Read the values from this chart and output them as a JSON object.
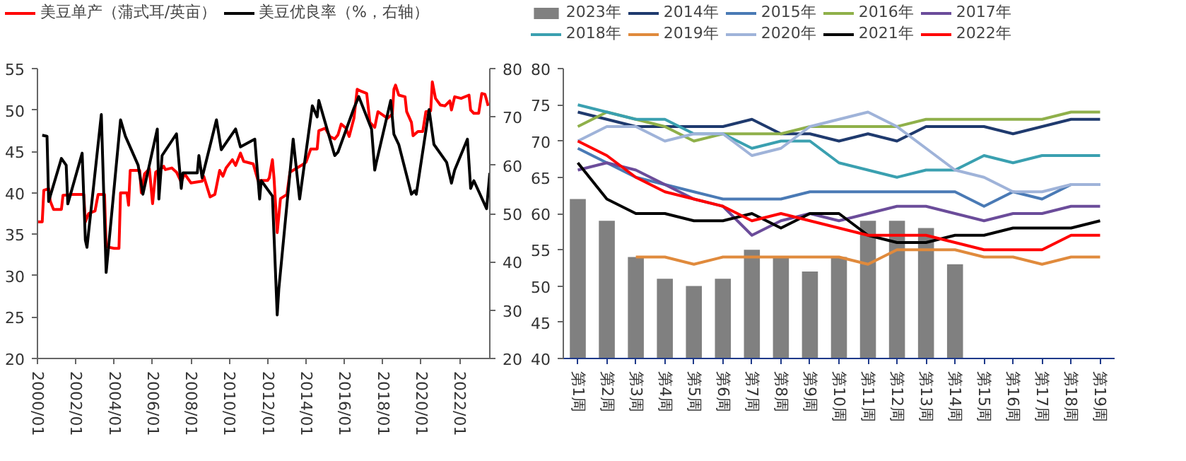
{
  "chart_data": [
    {
      "type": "line",
      "legend": "top",
      "grid": false,
      "ylim": [
        20,
        55
      ],
      "yticks": [
        20,
        25,
        30,
        35,
        40,
        45,
        50,
        55
      ],
      "y2lim": [
        20,
        80
      ],
      "y2ticks": [
        20,
        30,
        40,
        50,
        60,
        70,
        80
      ],
      "xlim": [
        "2000-01",
        "2023-08"
      ],
      "xticks": [
        {
          "value": "2000-01",
          "label": "2000/01"
        },
        {
          "value": "2002-01",
          "label": "2002/01"
        },
        {
          "value": "2004-01",
          "label": "2004/01"
        },
        {
          "value": "2006-01",
          "label": "2006/01"
        },
        {
          "value": "2008-01",
          "label": "2008/01"
        },
        {
          "value": "2010-01",
          "label": "2010/01"
        },
        {
          "value": "2012-01",
          "label": "2012/01"
        },
        {
          "value": "2014-01",
          "label": "2014/01"
        },
        {
          "value": "2016-01",
          "label": "2016/01"
        },
        {
          "value": "2018-01",
          "label": "2018/01"
        },
        {
          "value": "2020-01",
          "label": "2020/01"
        },
        {
          "value": "2022-01",
          "label": "2022/01"
        }
      ],
      "series": [
        {
          "name": "美豆单产（蒲式耳/英亩）",
          "color": "#ff0000",
          "x": [
            "2000-01",
            "2000-04",
            "2000-05",
            "2000-08",
            "2000-09",
            "2000-11",
            "2001-04",
            "2001-05",
            "2001-11",
            "2002-06",
            "2002-07",
            "2002-09",
            "2003-01",
            "2003-03",
            "2003-07",
            "2003-08",
            "2004-01",
            "2004-04",
            "2004-05",
            "2004-09",
            "2004-10",
            "2004-11",
            "2005-05",
            "2005-06",
            "2005-08",
            "2005-11",
            "2006-01",
            "2006-03",
            "2006-07",
            "2006-08",
            "2006-09",
            "2007-01",
            "2007-04",
            "2007-07",
            "2007-09",
            "2008-01",
            "2008-08",
            "2008-09",
            "2009-01",
            "2009-04",
            "2009-07",
            "2009-09",
            "2009-11",
            "2010-03",
            "2010-05",
            "2010-08",
            "2010-10",
            "2011-04",
            "2011-07",
            "2012-01",
            "2012-02",
            "2012-04",
            "2012-05",
            "2012-07",
            "2012-09",
            "2013-01",
            "2013-03",
            "2013-10",
            "2014-01",
            "2014-04",
            "2014-08",
            "2014-09",
            "2015-01",
            "2015-04",
            "2015-07",
            "2015-09",
            "2015-11",
            "2016-02",
            "2016-04",
            "2016-07",
            "2016-09",
            "2016-11",
            "2017-03",
            "2017-05",
            "2017-08",
            "2017-10",
            "2018-01",
            "2018-04",
            "2018-07",
            "2018-08",
            "2018-09",
            "2018-11",
            "2019-03",
            "2019-04",
            "2019-07",
            "2019-08",
            "2019-11",
            "2020-02",
            "2020-04",
            "2020-07",
            "2020-08",
            "2020-10",
            "2021-01",
            "2021-04",
            "2021-07",
            "2021-08",
            "2021-10",
            "2022-02",
            "2022-07",
            "2022-08",
            "2022-10",
            "2023-01",
            "2023-03",
            "2023-05",
            "2023-07"
          ],
          "values": [
            36.5,
            36.5,
            40.3,
            40.5,
            39,
            38,
            38,
            39.7,
            39.8,
            39.8,
            36.5,
            37.5,
            37.8,
            39.8,
            39.8,
            33.5,
            33.3,
            33.3,
            40,
            40,
            38.5,
            42.7,
            42.7,
            40,
            42.3,
            42.9,
            38.7,
            42.5,
            43,
            43.2,
            42.8,
            43,
            42.5,
            41.3,
            42.3,
            41.2,
            41.4,
            42,
            39.5,
            39.8,
            42.7,
            42,
            43,
            44,
            43.3,
            44.8,
            43.8,
            43.5,
            41.5,
            41.5,
            41.8,
            44,
            41.8,
            35.2,
            39.3,
            39.8,
            42.5,
            43.3,
            43.7,
            45.3,
            45.3,
            47.5,
            47.8,
            46.8,
            46.5,
            47,
            48.3,
            47.8,
            46.8,
            49,
            52.5,
            52.3,
            52,
            48.5,
            47.9,
            49.8,
            49.4,
            49,
            49.5,
            52.5,
            53,
            51.8,
            51.6,
            49.8,
            48.5,
            46.9,
            47.4,
            47.4,
            49.8,
            49.9,
            53.4,
            51.4,
            50.6,
            50.5,
            51.1,
            50,
            51.6,
            51.4,
            51.8,
            50,
            49.6,
            49.6,
            52,
            51.9,
            50.5
          ]
        },
        {
          "name": "美豆优良率（%，右轴）",
          "color": "#000000",
          "axis": "y2",
          "x": [
            "2000-04",
            "2000-07",
            "2000-08",
            "2001-04",
            "2001-07",
            "2001-08",
            "2002-05",
            "2002-07",
            "2002-08",
            "2003-05",
            "2003-08",
            "2004-05",
            "2004-08",
            "2005-04",
            "2005-07",
            "2006-04",
            "2006-05",
            "2006-07",
            "2007-04",
            "2007-07",
            "2007-08",
            "2008-05",
            "2008-06",
            "2008-08",
            "2009-05",
            "2009-08",
            "2010-05",
            "2010-08",
            "2011-05",
            "2011-08",
            "2011-09",
            "2012-04",
            "2012-07",
            "2012-08",
            "2013-05",
            "2013-09",
            "2014-05",
            "2014-08",
            "2014-09",
            "2015-07",
            "2015-09",
            "2016-07",
            "2016-10",
            "2017-06",
            "2017-08",
            "2017-09",
            "2018-06",
            "2018-08",
            "2018-11",
            "2019-07",
            "2019-09",
            "2019-10",
            "2020-06",
            "2020-09",
            "2021-05",
            "2021-08",
            "2021-10",
            "2022-06",
            "2022-08",
            "2022-10",
            "2023-06",
            "2023-08"
          ],
          "values": [
            66.2,
            66,
            52.5,
            61.4,
            60,
            52,
            62.5,
            44.5,
            43,
            70.5,
            37.8,
            69.4,
            66,
            60,
            54,
            67.5,
            53,
            62,
            66.5,
            55.2,
            58.4,
            58.4,
            62,
            57.4,
            69.4,
            63.2,
            67.5,
            63.8,
            65.4,
            53,
            56.8,
            53.6,
            29,
            34.4,
            65.4,
            53,
            72.3,
            70,
            73.4,
            62,
            62.7,
            71.8,
            74.2,
            67.5,
            59,
            60.6,
            73.4,
            66.4,
            64.3,
            54,
            54.7,
            54,
            71.5,
            64.3,
            60.6,
            56.3,
            59,
            65.4,
            55.2,
            56.8,
            51,
            58.4
          ]
        }
      ]
    },
    {
      "type": "line",
      "legend": "top",
      "grid": false,
      "ylim": [
        40,
        80
      ],
      "yticks": [
        40,
        45,
        50,
        55,
        60,
        65,
        70,
        75,
        80
      ],
      "categories": [
        "第1周",
        "第2周",
        "第3周",
        "第4周",
        "第5周",
        "第6周",
        "第7周",
        "第8周",
        "第9周",
        "第10周",
        "第11周",
        "第12周",
        "第13周",
        "第14周",
        "第15周",
        "第16周",
        "第17周",
        "第18周",
        "第19周"
      ],
      "series": [
        {
          "name": "2023年",
          "type": "bar",
          "color": "#808080",
          "values": [
            62,
            59,
            54,
            51,
            50,
            51,
            55,
            54,
            52,
            54,
            59,
            59,
            58,
            53,
            null,
            null,
            null,
            null,
            null
          ]
        },
        {
          "name": "2014年",
          "color": "#1f3a6e",
          "values": [
            74,
            73,
            72,
            72,
            72,
            72,
            73,
            71,
            71,
            70,
            71,
            70,
            72,
            72,
            72,
            71,
            72,
            73,
            73
          ]
        },
        {
          "name": "2015年",
          "color": "#4a7ab5",
          "values": [
            69,
            67,
            65,
            64,
            63,
            62,
            62,
            62,
            63,
            63,
            63,
            63,
            63,
            63,
            61,
            63,
            62,
            64,
            64
          ]
        },
        {
          "name": "2016年",
          "color": "#8fb04a",
          "values": [
            72,
            74,
            73,
            72,
            70,
            71,
            71,
            71,
            72,
            72,
            72,
            72,
            73,
            73,
            73,
            73,
            73,
            74,
            74
          ]
        },
        {
          "name": "2017年",
          "color": "#6b4c9a",
          "values": [
            66,
            67,
            66,
            64,
            62,
            61,
            57,
            59,
            60,
            59,
            60,
            61,
            61,
            60,
            59,
            60,
            60,
            61,
            61
          ]
        },
        {
          "name": "2018年",
          "color": "#3aa0b0",
          "values": [
            75,
            74,
            73,
            73,
            71,
            71,
            69,
            70,
            70,
            67,
            66,
            65,
            66,
            66,
            68,
            67,
            68,
            68,
            68
          ]
        },
        {
          "name": "2019年",
          "color": "#e08a3c",
          "values": [
            null,
            null,
            54,
            54,
            53,
            54,
            54,
            54,
            54,
            54,
            53,
            55,
            55,
            55,
            54,
            54,
            53,
            54,
            54
          ]
        },
        {
          "name": "2020年",
          "color": "#9fb3d9",
          "values": [
            70,
            72,
            72,
            70,
            71,
            71,
            68,
            69,
            72,
            73,
            74,
            72,
            69,
            66,
            65,
            63,
            63,
            64,
            64
          ]
        },
        {
          "name": "2021年",
          "color": "#000000",
          "values": [
            67,
            62,
            60,
            60,
            59,
            59,
            60,
            58,
            60,
            60,
            57,
            56,
            56,
            57,
            57,
            58,
            58,
            58,
            59
          ]
        },
        {
          "name": "2022年",
          "color": "#ff0000",
          "values": [
            70,
            68,
            65,
            63,
            62,
            61,
            59,
            60,
            59,
            58,
            57,
            57,
            57,
            56,
            55,
            55,
            55,
            57,
            57
          ]
        }
      ]
    }
  ]
}
